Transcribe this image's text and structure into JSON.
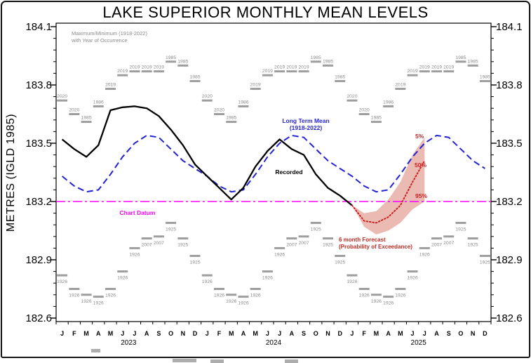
{
  "chart_data": {
    "type": "line",
    "title": "LAKE SUPERIOR MONTHLY MEAN LEVELS",
    "ylabel": "METRES (IGLD 1985)",
    "ylim": [
      182.6,
      184.1
    ],
    "y_ticks": [
      184.1,
      183.8,
      183.5,
      183.2,
      182.9,
      182.6
    ],
    "minor_tick_step": 0.06,
    "x_months": [
      "J",
      "F",
      "M",
      "A",
      "M",
      "J",
      "J",
      "A",
      "S",
      "O",
      "N",
      "D"
    ],
    "x_years": [
      "2023",
      "2024",
      "2025"
    ],
    "datum": {
      "label": "Chart Datum",
      "value": 183.2
    },
    "extremes": {
      "legend_line1": "Maximum/Minimum (1918-2022)",
      "legend_line2": "with Year of Occurrence",
      "max_levels": [
        183.72,
        183.65,
        183.61,
        183.69,
        183.78,
        183.85,
        183.87,
        183.87,
        183.87,
        183.92,
        183.9,
        183.82
      ],
      "max_years": [
        "2020",
        "2020",
        "1985",
        "1986",
        "2019",
        "2019",
        "2019",
        "2019",
        "2019",
        "1985",
        "1985",
        "1985"
      ],
      "min_levels": [
        182.82,
        182.75,
        182.72,
        182.71,
        182.75,
        182.84,
        182.96,
        183.01,
        183.02,
        183.09,
        183.01,
        182.92
      ],
      "min_years": [
        "1926",
        "1926",
        "1926",
        "1926",
        "1926",
        "1926",
        "1926",
        "2007",
        "2007",
        "1925",
        "1925",
        "1925"
      ]
    },
    "long_term_mean": {
      "label_line1": "Long Term Mean",
      "label_line2": "(1918-2022)",
      "monthly": [
        183.33,
        183.28,
        183.25,
        183.26,
        183.34,
        183.43,
        183.5,
        183.54,
        183.53,
        183.47,
        183.41,
        183.37
      ]
    },
    "recorded": {
      "label": "Recorded",
      "start_month_index": 0,
      "values": [
        183.52,
        183.47,
        183.43,
        183.49,
        183.67,
        183.685,
        183.69,
        183.68,
        183.64,
        183.57,
        183.49,
        183.39,
        183.33,
        183.27,
        183.21,
        183.27,
        183.38,
        183.46,
        183.52,
        183.47,
        183.44,
        183.34,
        183.27,
        183.23,
        183.18
      ]
    },
    "forecast": {
      "label_line1": "6 month Forecast",
      "label_line2": "(Probability of Exceedance)",
      "start_month_index": 24,
      "percent_labels": [
        "5%",
        "50%",
        "95%"
      ],
      "p5": [
        183.18,
        183.14,
        183.15,
        183.21,
        183.3,
        183.44,
        183.53
      ],
      "p50": [
        183.18,
        183.1,
        183.09,
        183.12,
        183.18,
        183.3,
        183.41
      ],
      "p95": [
        183.18,
        183.07,
        183.03,
        183.05,
        183.09,
        183.16,
        183.2
      ]
    },
    "colors": {
      "recorded": "#000000",
      "long_term_mean": "#2323d6",
      "datum": "#ff00ff",
      "forecast_line": "#cc2222",
      "forecast_band": "#e9b3aa",
      "forecast_text": "#bb2d25",
      "marker": "#9e9e9e",
      "marker_text": "#8c8c8c"
    },
    "bottom_artifacts": [
      {
        "x": 130,
        "y": 497,
        "w": 13
      },
      {
        "x": 246,
        "y": 511,
        "w": 34
      },
      {
        "x": 300,
        "y": 512,
        "w": 19
      },
      {
        "x": 406,
        "y": 512,
        "w": 19
      }
    ]
  }
}
